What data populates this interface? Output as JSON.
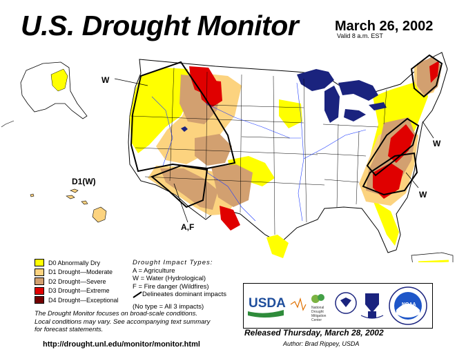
{
  "header": {
    "title": "U.S. Drought Monitor",
    "date": "March 26, 2002",
    "valid": "Valid 8 a.m. EST"
  },
  "map_labels": {
    "w_nw": "W",
    "w_ne": "W",
    "w_se": "W",
    "af": "A,F",
    "hawaii": "D1(W)"
  },
  "legend": {
    "items": [
      {
        "label": "D0 Abnormally Dry",
        "color": "#ffff00"
      },
      {
        "label": "D1 Drought—Moderate",
        "color": "#fcd37f"
      },
      {
        "label": "D2 Drought—Severe",
        "color": "#d2a070"
      },
      {
        "label": "D3 Drought—Extreme",
        "color": "#e00000"
      },
      {
        "label": "D4 Drought—Exceptional",
        "color": "#730000"
      }
    ]
  },
  "impacts": {
    "heading": "Drought Impact Types:",
    "a": "A = Agriculture",
    "w": "W = Water (Hydrological)",
    "f": "F = Fire danger (Wildfires)",
    "delineates": "Delineates dominant impacts",
    "none": "(No type = All 3 impacts)"
  },
  "note": {
    "line1": "The Drought Monitor focuses on broad-scale conditions.",
    "line2": "Local conditions may vary. See accompanying text summary",
    "line3": "for forecast statements."
  },
  "url": "http://drought.unl.edu/monitor/monitor.html",
  "logos": {
    "usda": "USDA",
    "ndmc": [
      "National",
      "Drought",
      "Mitigation",
      "Center"
    ],
    "noaa": "NOAA"
  },
  "released": "Released Thursday, March 28, 2002",
  "author": "Author: Brad Rippey, USDA"
}
